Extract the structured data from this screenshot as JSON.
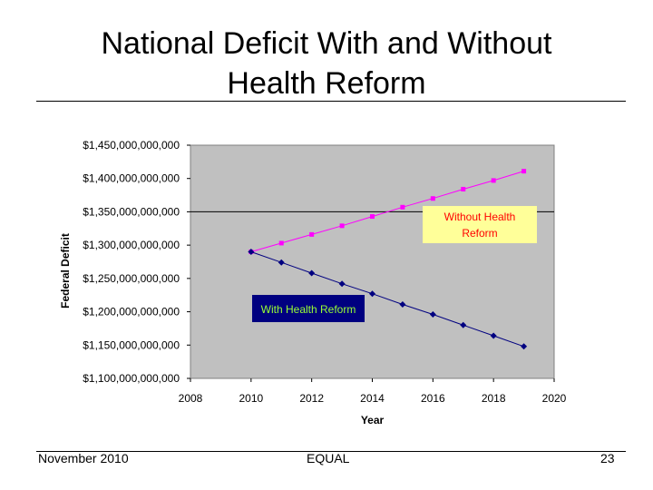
{
  "slide": {
    "title_line1": "National Deficit With and Without",
    "title_line2": "Health Reform",
    "footer_left": "November 2010",
    "footer_center": "EQUAL",
    "footer_right": "23"
  },
  "chart_data": {
    "type": "line",
    "title": "",
    "xlabel": "Year",
    "ylabel": "Federal Deficit",
    "xlim": [
      2008,
      2020
    ],
    "ylim": [
      1100000000000,
      1450000000000
    ],
    "x_ticks": [
      2008,
      2010,
      2012,
      2014,
      2016,
      2018,
      2020
    ],
    "y_ticks": [
      1100000000000,
      1150000000000,
      1200000000000,
      1250000000000,
      1300000000000,
      1350000000000,
      1400000000000,
      1450000000000
    ],
    "y_tick_labels": [
      "$1,100,000,000,000",
      "$1,150,000,000,000",
      "$1,200,000,000,000",
      "$1,250,000,000,000",
      "$1,300,000,000,000",
      "$1,350,000,000,000",
      "$1,400,000,000,000",
      "$1,450,000,000,000"
    ],
    "plot_background": "#c0c0c0",
    "grid": "horizontal line at $1,350,000,000,000",
    "x": [
      2010,
      2011,
      2012,
      2013,
      2014,
      2015,
      2016,
      2017,
      2018,
      2019
    ],
    "series": [
      {
        "label_text": "Without Health Reform",
        "color": "#ff00ff",
        "marker": "square",
        "label_box_color": "#ffff99",
        "label_text_color": "#ff0000",
        "values": [
          1290000000000,
          1303000000000,
          1316000000000,
          1329000000000,
          1343000000000,
          1357000000000,
          1370000000000,
          1384000000000,
          1397000000000,
          1411000000000
        ]
      },
      {
        "label_text": "With Health Reform",
        "color": "#000080",
        "marker": "diamond",
        "label_box_color": "#000080",
        "label_text_color": "#99ff33",
        "values": [
          1290000000000,
          1274000000000,
          1258000000000,
          1242000000000,
          1227000000000,
          1211000000000,
          1196000000000,
          1180000000000,
          1164000000000,
          1148000000000
        ]
      }
    ]
  }
}
